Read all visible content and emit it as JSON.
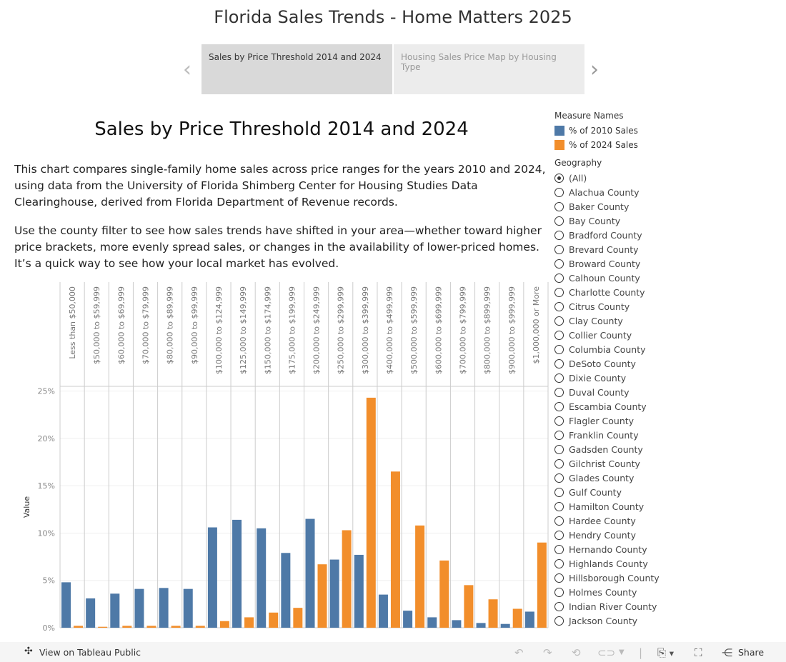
{
  "title": "Florida Sales Trends - Home Matters 2025",
  "tabs": [
    "Sales by Price Threshold 2014 and 2024",
    "Housing Sales Price Map by Housing Type"
  ],
  "sheet_title": "Sales by Price Threshold 2014 and 2024",
  "paragraphs": [
    "This chart compares single-family home sales across price ranges for the years 2010 and 2024, using data from the University of Florida Shimberg Center for Housing Studies Data Clearinghouse, derived from Florida Department of Revenue records.",
    "Use the county filter to see how sales trends have shifted in your area—whether toward higher price brackets, more evenly spread sales, or changes in the availability of lower-priced homes. It’s a quick way to see how your local market has evolved."
  ],
  "legend": {
    "title": "Measure Names",
    "items": [
      {
        "label": "% of 2010 Sales",
        "color": "#4e79a7"
      },
      {
        "label": "% of 2024 Sales",
        "color": "#f28e2b"
      }
    ]
  },
  "geography": {
    "title": "Geography",
    "selected": "(All)",
    "options": [
      "(All)",
      "Alachua County",
      "Baker County",
      "Bay County",
      "Bradford County",
      "Brevard County",
      "Broward County",
      "Calhoun County",
      "Charlotte County",
      "Citrus County",
      "Clay County",
      "Collier County",
      "Columbia County",
      "DeSoto County",
      "Dixie County",
      "Duval County",
      "Escambia County",
      "Flagler County",
      "Franklin County",
      "Gadsden County",
      "Gilchrist County",
      "Glades County",
      "Gulf County",
      "Hamilton County",
      "Hardee County",
      "Hendry County",
      "Hernando County",
      "Highlands County",
      "Hillsborough County",
      "Holmes County",
      "Indian River County",
      "Jackson County"
    ]
  },
  "chart_data": {
    "type": "bar",
    "ylabel": "Value",
    "ylim": [
      0,
      25.5
    ],
    "yticks": [
      "0%",
      "5%",
      "10%",
      "15%",
      "20%",
      "25%"
    ],
    "grid": true,
    "categories": [
      "Less than $50,000",
      "$50,000 to $59,999",
      "$60,000 to $69,999",
      "$70,000 to $79,999",
      "$80,000 to $89,999",
      "$90,000 to $99,999",
      "$100,000 to $124,999",
      "$125,000 to $149,999",
      "$150,000 to $174,999",
      "$175,000 to $199,999",
      "$200,000 to $249,999",
      "$250,000 to $299,999",
      "$300,000 to $399,999",
      "$400,000 to $499,999",
      "$500,000 to $599,999",
      "$600,000 to $699,999",
      "$700,000 to $799,999",
      "$800,000 to $899,999",
      "$900,000 to $999,999",
      "$1,000,000 or More"
    ],
    "series": [
      {
        "name": "% of 2010 Sales",
        "color": "#4e79a7",
        "values": [
          4.8,
          3.1,
          3.6,
          4.1,
          4.2,
          4.1,
          10.6,
          11.4,
          10.5,
          7.9,
          11.5,
          7.2,
          7.7,
          3.5,
          1.8,
          1.1,
          0.8,
          0.5,
          0.4,
          1.7
        ]
      },
      {
        "name": "% of 2024 Sales",
        "color": "#f28e2b",
        "values": [
          0.2,
          0.1,
          0.2,
          0.2,
          0.2,
          0.2,
          0.7,
          1.1,
          1.6,
          2.1,
          6.7,
          10.3,
          24.3,
          16.5,
          10.8,
          7.1,
          4.5,
          3.0,
          2.0,
          9.0
        ]
      }
    ]
  },
  "toolbar": {
    "view_label": "View on Tableau Public",
    "share_label": "Share"
  }
}
